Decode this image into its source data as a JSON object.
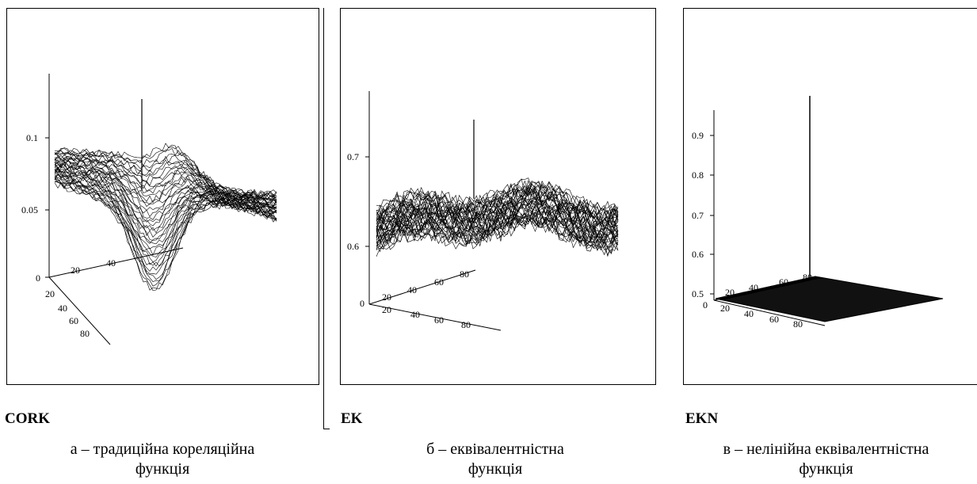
{
  "chart_data": [
    {
      "type": "surface",
      "name": "CORK",
      "caption_line1": "а – традиційна кореляційна",
      "caption_line2": "функція",
      "z_ticks": [
        "0.1",
        "0.05",
        "0"
      ],
      "x_ticks": [
        "20",
        "40"
      ],
      "y_ticks": [
        "20",
        "40",
        "60",
        "80"
      ],
      "grid": false,
      "peak_value": 0.13
    },
    {
      "type": "surface",
      "name": "EK",
      "caption_line1": "б – еквівалентністна",
      "caption_line2": "функція",
      "z_ticks": [
        "0.7",
        "0.6",
        "0"
      ],
      "x_ticks": [
        "20",
        "40",
        "60",
        "80"
      ],
      "y_ticks": [
        "20",
        "40",
        "60",
        "80"
      ],
      "grid": false,
      "peak_value": 0.76
    },
    {
      "type": "surface",
      "name": "EKN",
      "caption_line1": "в – нелінійна еквівалентністна",
      "caption_line2": "функція",
      "z_ticks": [
        "0.9",
        "0.8",
        "0.7",
        "0.6",
        "0.5",
        "0"
      ],
      "x_ticks": [
        "20",
        "40",
        "60",
        "80"
      ],
      "y_ticks": [
        "20",
        "40",
        "60",
        "80"
      ],
      "grid": false,
      "peak_value": 0.99
    }
  ]
}
